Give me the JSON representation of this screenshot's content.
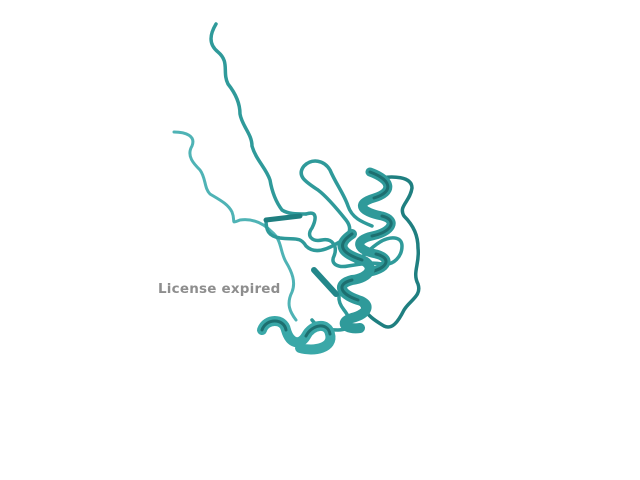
{
  "viewer": {
    "watermark_text": "License expired",
    "ribbon_color": "#2f9a9a",
    "ribbon_dark": "#1d6f70",
    "ribbon_light": "#5cc2c2",
    "background": "#ffffff"
  }
}
